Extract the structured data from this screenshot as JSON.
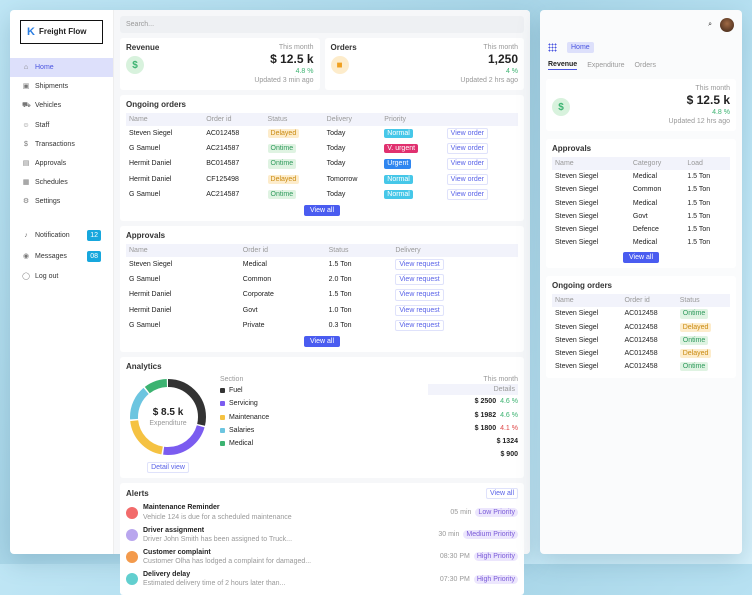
{
  "brand": "Freight Flow",
  "sidebar": {
    "items": [
      {
        "label": "Home",
        "icon": "home-icon"
      },
      {
        "label": "Shipments",
        "icon": "box-icon"
      },
      {
        "label": "Vehicles",
        "icon": "truck-icon"
      },
      {
        "label": "Staff",
        "icon": "user-icon"
      },
      {
        "label": "Transactions",
        "icon": "dollar-icon"
      },
      {
        "label": "Approvals",
        "icon": "document-icon"
      },
      {
        "label": "Schedules",
        "icon": "calendar-icon"
      },
      {
        "label": "Settings",
        "icon": "gear-icon"
      }
    ],
    "bottom": [
      {
        "label": "Notification",
        "icon": "bell-icon",
        "badge": "12"
      },
      {
        "label": "Messages",
        "icon": "chat-icon",
        "badge": "08"
      },
      {
        "label": "Log out",
        "icon": "logout-icon"
      }
    ]
  },
  "search": {
    "placeholder": "Search..."
  },
  "revenue": {
    "title": "Revenue",
    "period": "This month",
    "value": "$ 12.5 k",
    "change": "4.8 %",
    "updated": "Updated 3 min ago"
  },
  "orders_card": {
    "title": "Orders",
    "period": "This month",
    "value": "1,250",
    "change": "4 %",
    "updated": "Updated 2 hrs ago"
  },
  "ongoing": {
    "title": "Ongoing orders",
    "headers": [
      "Name",
      "Order id",
      "Status",
      "Delivery",
      "Priority",
      ""
    ],
    "rows": [
      [
        "Steven Siegel",
        "AC012458",
        "Delayed",
        "Today",
        "Normal",
        "View order"
      ],
      [
        "G Samuel",
        "AC214587",
        "Ontime",
        "Today",
        "V. urgent",
        "View order"
      ],
      [
        "Hermit Daniel",
        "BC014587",
        "Ontime",
        "Today",
        "Urgent",
        "View order"
      ],
      [
        "Hermit Daniel",
        "CF125498",
        "Delayed",
        "Tomorrow",
        "Normal",
        "View order"
      ],
      [
        "G Samuel",
        "AC214587",
        "Ontime",
        "Today",
        "Normal",
        "View order"
      ]
    ],
    "view_all": "View all"
  },
  "approvals": {
    "title": "Approvals",
    "headers": [
      "Name",
      "Order id",
      "Status",
      "Delivery"
    ],
    "rows": [
      [
        "Steven Siegel",
        "Medical",
        "1.5 Ton",
        "View request"
      ],
      [
        "G Samuel",
        "Common",
        "2.0 Ton",
        "View request"
      ],
      [
        "Hermit Daniel",
        "Corporate",
        "1.5 Ton",
        "View request"
      ],
      [
        "Hermit Daniel",
        "Govt",
        "1.0 Ton",
        "View request"
      ],
      [
        "G Samuel",
        "Private",
        "0.3 Ton",
        "View request"
      ]
    ],
    "view_all": "View all"
  },
  "analytics": {
    "title": "Analytics",
    "center_value": "$ 8.5 k",
    "center_label": "Expenditure",
    "section_label": "Section",
    "period": "This month",
    "details_label": "Details",
    "detail_view": "Detail view",
    "segments": [
      {
        "name": "Fuel",
        "value": 2500,
        "display": "$ 2500",
        "change": "4.6 %",
        "trend": "up",
        "color": "#333333"
      },
      {
        "name": "Servicing",
        "value": 1982,
        "display": "$ 1982",
        "change": "4.6 %",
        "trend": "up",
        "color": "#7b5cf0"
      },
      {
        "name": "Maintenance",
        "value": 1800,
        "display": "$ 1800",
        "change": "4.1 %",
        "trend": "down",
        "color": "#f5c242"
      },
      {
        "name": "Salaries",
        "value": 1324,
        "display": "$ 1324",
        "change": "",
        "trend": "",
        "color": "#6cc5e0"
      },
      {
        "name": "Medical",
        "value": 900,
        "display": "$ 900",
        "change": "",
        "trend": "",
        "color": "#3cb371"
      }
    ]
  },
  "alerts": {
    "title": "Alerts",
    "view_all": "View all",
    "items": [
      {
        "title": "Maintenance Reminder",
        "desc": "Vehicle 124 is due for a scheduled maintenance",
        "time": "05 min",
        "priority": "Low Priority",
        "color": "#f26b6b"
      },
      {
        "title": "Driver assignment",
        "desc": "Driver John Smith has been assigned to Truck...",
        "time": "30 min",
        "priority": "Medium Priority",
        "color": "#b9a6ee"
      },
      {
        "title": "Customer complaint",
        "desc": "Customer Olha has lodged a complaint for damaged...",
        "time": "08:30 PM",
        "priority": "High Priority",
        "color": "#f39a4c"
      },
      {
        "title": "Delivery delay",
        "desc": "Estimated delivery time of 2 hours later than...",
        "time": "07:30 PM",
        "priority": "High Priority",
        "color": "#62cfcf"
      }
    ]
  },
  "mobile": {
    "home": "Home",
    "tabs": [
      "Revenue",
      "Expenditure",
      "Orders"
    ],
    "updated": "Updated 12 hrs ago",
    "approvals": {
      "title": "Approvals",
      "headers": [
        "Name",
        "Category",
        "Load"
      ],
      "rows": [
        [
          "Steven Siegel",
          "Medical",
          "1.5 Ton"
        ],
        [
          "Steven Siegel",
          "Common",
          "1.5 Ton"
        ],
        [
          "Steven Siegel",
          "Medical",
          "1.5 Ton"
        ],
        [
          "Steven Siegel",
          "Govt",
          "1.5 Ton"
        ],
        [
          "Steven Siegel",
          "Defence",
          "1.5 Ton"
        ],
        [
          "Steven Siegel",
          "Medical",
          "1.5 Ton"
        ]
      ],
      "view_all": "View all"
    },
    "ongoing": {
      "title": "Ongoing orders",
      "headers": [
        "Name",
        "Order id",
        "Status"
      ],
      "rows": [
        [
          "Steven Siegel",
          "AC012458",
          "Ontime"
        ],
        [
          "Steven Siegel",
          "AC012458",
          "Delayed"
        ],
        [
          "Steven Siegel",
          "AC012458",
          "Ontime"
        ],
        [
          "Steven Siegel",
          "AC012458",
          "Delayed"
        ],
        [
          "Steven Siegel",
          "AC012458",
          "Ontime"
        ]
      ]
    }
  }
}
